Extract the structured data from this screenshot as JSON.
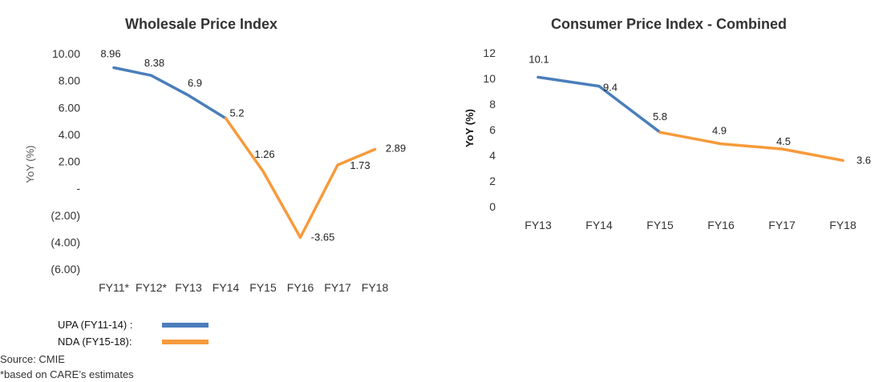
{
  "colors": {
    "upa": "#4a7ebb",
    "nda": "#f79a3b"
  },
  "legend": {
    "items": [
      {
        "label": "UPA (FY11-14) :",
        "color": "#4a7ebb"
      },
      {
        "label": "NDA (FY15-18):",
        "color": "#f79a3b"
      }
    ]
  },
  "notes": {
    "source": "Source: CMIE",
    "footnote": "*based on CARE’s estimates"
  },
  "chart_data": [
    {
      "type": "line",
      "title": "Wholesale Price Index",
      "ylabel": "YoY (%)",
      "xlabel": "",
      "categories": [
        "FY11*",
        "FY12*",
        "FY13",
        "FY14",
        "FY15",
        "FY16",
        "FY17",
        "FY18"
      ],
      "values": [
        8.96,
        8.38,
        6.9,
        5.2,
        1.26,
        -3.65,
        1.73,
        2.89
      ],
      "data_labels": [
        "8.96",
        "8.38",
        "6.9",
        "5.2",
        "1.26",
        "-3.65",
        "1.73",
        "2.89"
      ],
      "ylim": [
        -6,
        10
      ],
      "yticks": [
        10,
        8,
        6,
        4,
        2,
        0,
        -2,
        -4,
        -6
      ],
      "ytick_labels": [
        "10.00",
        "8.00",
        "6.00",
        "4.00",
        "2.00",
        "-",
        "(2.00)",
        "(4.00)",
        "(6.00)"
      ],
      "segments": [
        {
          "name": "UPA (FY11-14)",
          "from": 0,
          "to": 3,
          "color": "#4a7ebb"
        },
        {
          "name": "NDA (FY15-18)",
          "from": 3,
          "to": 7,
          "color": "#f79a3b"
        }
      ],
      "grid": false,
      "legend": "bottom-left"
    },
    {
      "type": "line",
      "title": "Consumer Price Index - Combined",
      "ylabel": "YoY (%)",
      "xlabel": "",
      "categories": [
        "FY13",
        "FY14",
        "FY15",
        "FY16",
        "FY17",
        "FY18"
      ],
      "values": [
        10.1,
        9.4,
        5.8,
        4.9,
        4.5,
        3.6
      ],
      "data_labels": [
        "10.1",
        "9.4",
        "5.8",
        "4.9",
        "4.5",
        "3.6"
      ],
      "ylim": [
        0,
        12
      ],
      "yticks": [
        12,
        10,
        8,
        6,
        4,
        2,
        0
      ],
      "ytick_labels": [
        "12",
        "10",
        "8",
        "6",
        "4",
        "2",
        "0"
      ],
      "segments": [
        {
          "name": "UPA (FY11-14)",
          "from": 0,
          "to": 2,
          "color": "#4a7ebb"
        },
        {
          "name": "NDA (FY15-18)",
          "from": 2,
          "to": 5,
          "color": "#f79a3b"
        }
      ],
      "grid": false
    }
  ]
}
